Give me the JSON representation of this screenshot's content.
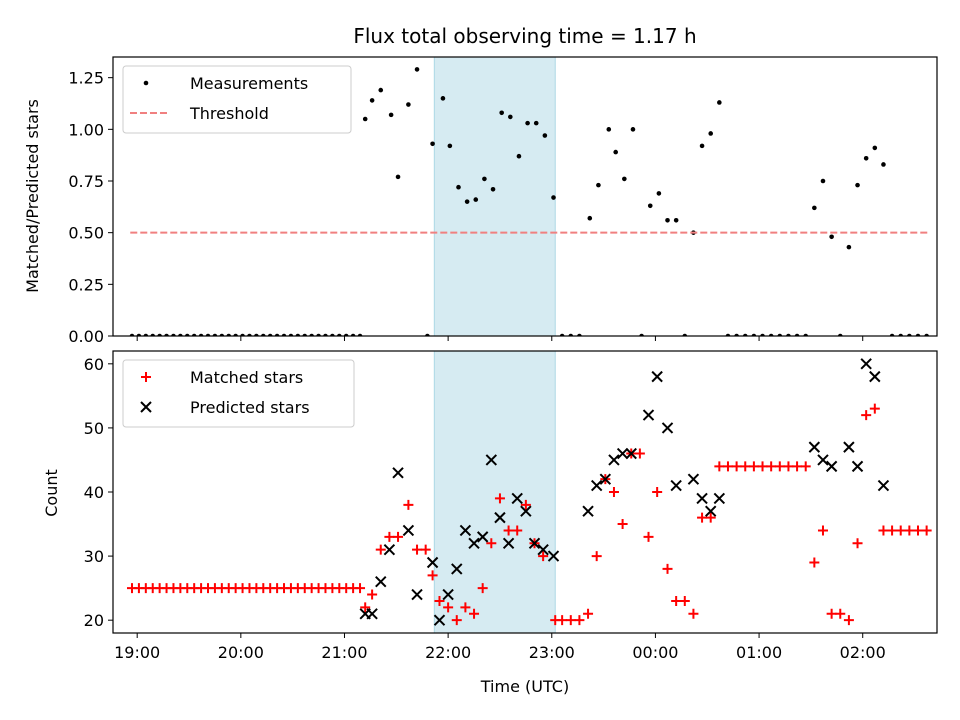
{
  "chart_data": [
    {
      "type": "scatter",
      "title": "Flux total observing time = 1.17 h",
      "xlabel": "",
      "ylabel": "Matched/Predicted stars",
      "xlim": [
        "18:46",
        "02:43"
      ],
      "ylim": [
        0,
        1.35
      ],
      "yticks": [
        "0.00",
        "0.25",
        "0.50",
        "0.75",
        "1.00",
        "1.25"
      ],
      "xticks": [
        "19:00",
        "20:00",
        "21:00",
        "22:00",
        "23:00",
        "00:00",
        "01:00",
        "02:00"
      ],
      "grid": false,
      "legend_position": "upper-left",
      "shaded_interval": [
        "21:52",
        "23:02"
      ],
      "shade_color": "#add8e6",
      "series": [
        {
          "name": "Measurements",
          "kind": "points",
          "color": "#000000",
          "points": [
            [
              "18:57",
              0
            ],
            [
              "19:01",
              0
            ],
            [
              "19:05",
              0
            ],
            [
              "19:09",
              0
            ],
            [
              "19:13",
              0
            ],
            [
              "19:17",
              0
            ],
            [
              "19:21",
              0
            ],
            [
              "19:25",
              0
            ],
            [
              "19:29",
              0
            ],
            [
              "19:33",
              0
            ],
            [
              "19:37",
              0
            ],
            [
              "19:41",
              0
            ],
            [
              "19:45",
              0
            ],
            [
              "19:49",
              0
            ],
            [
              "19:53",
              0
            ],
            [
              "19:57",
              0
            ],
            [
              "20:01",
              0
            ],
            [
              "20:05",
              0
            ],
            [
              "20:09",
              0
            ],
            [
              "20:13",
              0
            ],
            [
              "20:17",
              0
            ],
            [
              "20:21",
              0
            ],
            [
              "20:25",
              0
            ],
            [
              "20:29",
              0
            ],
            [
              "20:33",
              0
            ],
            [
              "20:37",
              0
            ],
            [
              "20:41",
              0
            ],
            [
              "20:45",
              0
            ],
            [
              "20:49",
              0
            ],
            [
              "20:53",
              0
            ],
            [
              "20:57",
              0
            ],
            [
              "21:01",
              0
            ],
            [
              "21:05",
              0
            ],
            [
              "21:09",
              0
            ],
            [
              "21:12",
              1.05
            ],
            [
              "21:16",
              1.14
            ],
            [
              "21:21",
              1.19
            ],
            [
              "21:27",
              1.07
            ],
            [
              "21:31",
              0.77
            ],
            [
              "21:37",
              1.12
            ],
            [
              "21:42",
              1.29
            ],
            [
              "21:48",
              0
            ],
            [
              "21:51",
              0.93
            ],
            [
              "21:57",
              1.15
            ],
            [
              "22:01",
              0.92
            ],
            [
              "22:06",
              0.72
            ],
            [
              "22:11",
              0.65
            ],
            [
              "22:16",
              0.66
            ],
            [
              "22:21",
              0.76
            ],
            [
              "22:26",
              0.71
            ],
            [
              "22:31",
              1.08
            ],
            [
              "22:36",
              1.06
            ],
            [
              "22:41",
              0.87
            ],
            [
              "22:46",
              1.03
            ],
            [
              "22:51",
              1.03
            ],
            [
              "22:56",
              0.97
            ],
            [
              "23:01",
              0.67
            ],
            [
              "23:06",
              0
            ],
            [
              "23:11",
              0
            ],
            [
              "23:16",
              0
            ],
            [
              "23:22",
              0.57
            ],
            [
              "23:27",
              0.73
            ],
            [
              "23:33",
              1.0
            ],
            [
              "23:37",
              0.89
            ],
            [
              "23:42",
              0.76
            ],
            [
              "23:47",
              1.0
            ],
            [
              "23:52",
              0
            ],
            [
              "23:57",
              0.63
            ],
            [
              "00:02",
              0.69
            ],
            [
              "00:07",
              0.56
            ],
            [
              "00:12",
              0.56
            ],
            [
              "00:17",
              0
            ],
            [
              "00:22",
              0.5
            ],
            [
              "00:27",
              0.92
            ],
            [
              "00:32",
              0.98
            ],
            [
              "00:37",
              1.13
            ],
            [
              "00:42",
              0
            ],
            [
              "00:47",
              0
            ],
            [
              "00:52",
              0
            ],
            [
              "00:57",
              0
            ],
            [
              "01:02",
              0
            ],
            [
              "01:07",
              0
            ],
            [
              "01:12",
              0
            ],
            [
              "01:17",
              0
            ],
            [
              "01:22",
              0
            ],
            [
              "01:27",
              0
            ],
            [
              "01:32",
              0.62
            ],
            [
              "01:37",
              0.75
            ],
            [
              "01:42",
              0.48
            ],
            [
              "01:47",
              0
            ],
            [
              "01:52",
              0.43
            ],
            [
              "01:57",
              0.73
            ],
            [
              "02:02",
              0.86
            ],
            [
              "02:07",
              0.91
            ],
            [
              "02:12",
              0.83
            ],
            [
              "02:17",
              0
            ],
            [
              "02:22",
              0
            ],
            [
              "02:27",
              0
            ],
            [
              "02:32",
              0
            ],
            [
              "02:37",
              0
            ]
          ]
        },
        {
          "name": "Threshold",
          "kind": "dashed-line",
          "color": "#f08080",
          "x": [
            "18:56",
            "02:38"
          ],
          "y": 0.5
        }
      ]
    },
    {
      "type": "scatter",
      "title": "",
      "xlabel": "Time (UTC)",
      "ylabel": "Count",
      "xlim": [
        "18:46",
        "02:43"
      ],
      "ylim": [
        18,
        62
      ],
      "yticks": [
        "20",
        "30",
        "40",
        "50",
        "60"
      ],
      "xticks": [
        "19:00",
        "20:00",
        "21:00",
        "22:00",
        "23:00",
        "00:00",
        "01:00",
        "02:00"
      ],
      "grid": false,
      "legend_position": "upper-left",
      "shaded_interval": [
        "21:52",
        "23:02"
      ],
      "shade_color": "#add8e6",
      "series": [
        {
          "name": "Matched stars",
          "marker": "plus",
          "color": "#ff0000",
          "points": [
            [
              "18:57",
              25
            ],
            [
              "19:01",
              25
            ],
            [
              "19:05",
              25
            ],
            [
              "19:09",
              25
            ],
            [
              "19:13",
              25
            ],
            [
              "19:17",
              25
            ],
            [
              "19:21",
              25
            ],
            [
              "19:25",
              25
            ],
            [
              "19:29",
              25
            ],
            [
              "19:33",
              25
            ],
            [
              "19:37",
              25
            ],
            [
              "19:41",
              25
            ],
            [
              "19:45",
              25
            ],
            [
              "19:49",
              25
            ],
            [
              "19:53",
              25
            ],
            [
              "19:57",
              25
            ],
            [
              "20:01",
              25
            ],
            [
              "20:05",
              25
            ],
            [
              "20:09",
              25
            ],
            [
              "20:13",
              25
            ],
            [
              "20:17",
              25
            ],
            [
              "20:21",
              25
            ],
            [
              "20:25",
              25
            ],
            [
              "20:29",
              25
            ],
            [
              "20:33",
              25
            ],
            [
              "20:37",
              25
            ],
            [
              "20:41",
              25
            ],
            [
              "20:45",
              25
            ],
            [
              "20:49",
              25
            ],
            [
              "20:53",
              25
            ],
            [
              "20:57",
              25
            ],
            [
              "21:01",
              25
            ],
            [
              "21:05",
              25
            ],
            [
              "21:09",
              25
            ],
            [
              "21:12",
              22
            ],
            [
              "21:16",
              24
            ],
            [
              "21:21",
              31
            ],
            [
              "21:26",
              33
            ],
            [
              "21:31",
              33
            ],
            [
              "21:37",
              38
            ],
            [
              "21:42",
              31
            ],
            [
              "21:47",
              31
            ],
            [
              "21:51",
              27
            ],
            [
              "21:55",
              23
            ],
            [
              "22:00",
              22
            ],
            [
              "22:05",
              20
            ],
            [
              "22:10",
              22
            ],
            [
              "22:15",
              21
            ],
            [
              "22:20",
              25
            ],
            [
              "22:25",
              32
            ],
            [
              "22:30",
              39
            ],
            [
              "22:35",
              34
            ],
            [
              "22:40",
              34
            ],
            [
              "22:45",
              38
            ],
            [
              "22:50",
              32
            ],
            [
              "22:55",
              30
            ],
            [
              "23:02",
              20
            ],
            [
              "23:06",
              20
            ],
            [
              "23:11",
              20
            ],
            [
              "23:16",
              20
            ],
            [
              "23:21",
              21
            ],
            [
              "23:26",
              30
            ],
            [
              "23:31",
              42
            ],
            [
              "23:36",
              40
            ],
            [
              "23:41",
              35
            ],
            [
              "23:46",
              46
            ],
            [
              "23:51",
              46
            ],
            [
              "23:56",
              33
            ],
            [
              "00:01",
              40
            ],
            [
              "00:07",
              28
            ],
            [
              "00:12",
              23
            ],
            [
              "00:17",
              23
            ],
            [
              "00:22",
              21
            ],
            [
              "00:27",
              36
            ],
            [
              "00:32",
              36
            ],
            [
              "00:37",
              44
            ],
            [
              "00:42",
              44
            ],
            [
              "00:47",
              44
            ],
            [
              "00:52",
              44
            ],
            [
              "00:57",
              44
            ],
            [
              "01:02",
              44
            ],
            [
              "01:07",
              44
            ],
            [
              "01:12",
              44
            ],
            [
              "01:17",
              44
            ],
            [
              "01:22",
              44
            ],
            [
              "01:27",
              44
            ],
            [
              "01:32",
              29
            ],
            [
              "01:37",
              34
            ],
            [
              "01:42",
              21
            ],
            [
              "01:47",
              21
            ],
            [
              "01:52",
              20
            ],
            [
              "01:57",
              32
            ],
            [
              "02:02",
              52
            ],
            [
              "02:07",
              53
            ],
            [
              "02:12",
              34
            ],
            [
              "02:17",
              34
            ],
            [
              "02:22",
              34
            ],
            [
              "02:27",
              34
            ],
            [
              "02:32",
              34
            ],
            [
              "02:37",
              34
            ]
          ]
        },
        {
          "name": "Predicted stars",
          "marker": "x",
          "color": "#000000",
          "points": [
            [
              "21:12",
              21
            ],
            [
              "21:16",
              21
            ],
            [
              "21:21",
              26
            ],
            [
              "21:26",
              31
            ],
            [
              "21:31",
              43
            ],
            [
              "21:37",
              34
            ],
            [
              "21:42",
              24
            ],
            [
              "21:51",
              29
            ],
            [
              "21:55",
              20
            ],
            [
              "22:00",
              24
            ],
            [
              "22:05",
              28
            ],
            [
              "22:10",
              34
            ],
            [
              "22:15",
              32
            ],
            [
              "22:20",
              33
            ],
            [
              "22:25",
              45
            ],
            [
              "22:30",
              36
            ],
            [
              "22:35",
              32
            ],
            [
              "22:40",
              39
            ],
            [
              "22:45",
              37
            ],
            [
              "22:50",
              32
            ],
            [
              "22:55",
              31
            ],
            [
              "23:01",
              30
            ],
            [
              "23:21",
              37
            ],
            [
              "23:26",
              41
            ],
            [
              "23:31",
              42
            ],
            [
              "23:36",
              45
            ],
            [
              "23:41",
              46
            ],
            [
              "23:46",
              46
            ],
            [
              "23:56",
              52
            ],
            [
              "00:01",
              58
            ],
            [
              "00:07",
              50
            ],
            [
              "00:12",
              41
            ],
            [
              "00:22",
              42
            ],
            [
              "00:27",
              39
            ],
            [
              "00:32",
              37
            ],
            [
              "00:37",
              39
            ],
            [
              "01:32",
              47
            ],
            [
              "01:37",
              45
            ],
            [
              "01:42",
              44
            ],
            [
              "01:52",
              47
            ],
            [
              "01:57",
              44
            ],
            [
              "02:02",
              60
            ],
            [
              "02:07",
              58
            ],
            [
              "02:12",
              41
            ]
          ]
        }
      ]
    }
  ]
}
